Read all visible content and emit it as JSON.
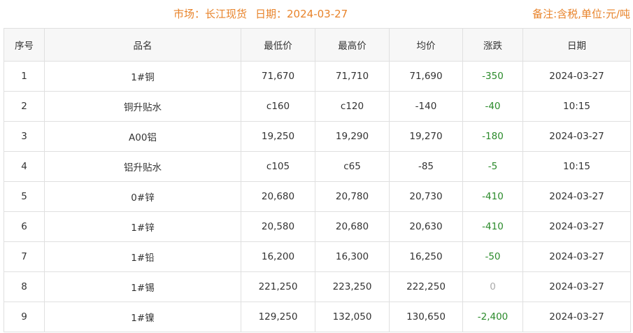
{
  "header": {
    "market": "市场：长江现货",
    "date": "日期：2024-03-27",
    "note": "备注:含税,单位:元/吨"
  },
  "colors": {
    "accent": "#e8832a",
    "down": "#2a8a2a",
    "flat": "#aaaaaa"
  },
  "columns": [
    "序号",
    "品名",
    "最低价",
    "最高价",
    "均价",
    "涨跌",
    "日期"
  ],
  "rows": [
    [
      "1",
      "1#铜",
      "71,670",
      "71,710",
      "71,690",
      "-350",
      "2024-03-27"
    ],
    [
      "2",
      "铜升贴水",
      "c160",
      "c120",
      "-140",
      "-40",
      "10:15"
    ],
    [
      "3",
      "A00铝",
      "19,250",
      "19,290",
      "19,270",
      "-180",
      "2024-03-27"
    ],
    [
      "4",
      "铝升贴水",
      "c105",
      "c65",
      "-85",
      "-5",
      "10:15"
    ],
    [
      "5",
      "0#锌",
      "20,680",
      "20,780",
      "20,730",
      "-410",
      "2024-03-27"
    ],
    [
      "6",
      "1#锌",
      "20,580",
      "20,680",
      "20,630",
      "-410",
      "2024-03-27"
    ],
    [
      "7",
      "1#铅",
      "16,200",
      "16,300",
      "16,250",
      "-50",
      "2024-03-27"
    ],
    [
      "8",
      "1#锡",
      "221,250",
      "223,250",
      "222,250",
      "0",
      "2024-03-27"
    ],
    [
      "9",
      "1#镍",
      "129,250",
      "132,050",
      "130,650",
      "-2,400",
      "2024-03-27"
    ]
  ]
}
